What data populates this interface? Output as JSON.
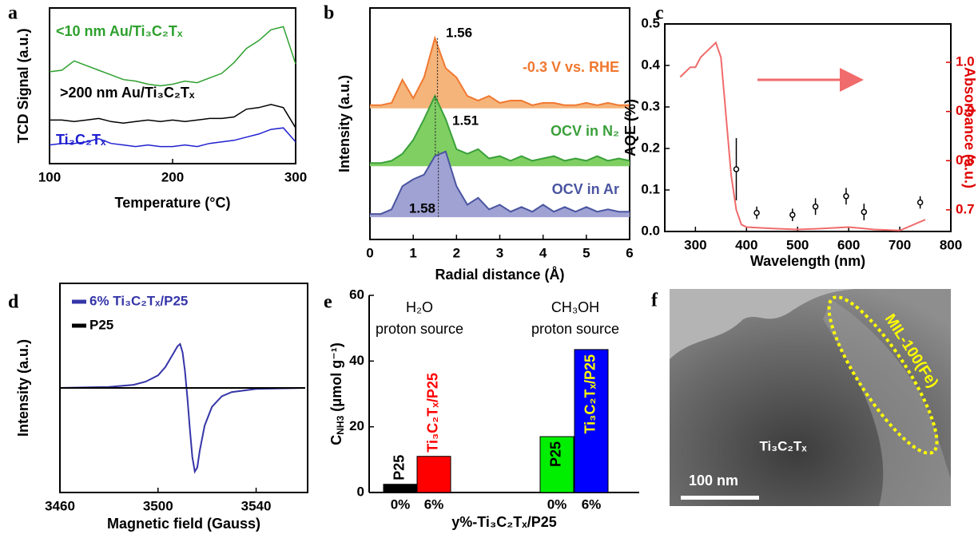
{
  "chart_data": [
    {
      "type": "line",
      "panel": "a",
      "x_label": "Temperature (°C)",
      "y_label": "TCD Signal (a.u.)",
      "x": [
        100,
        110,
        120,
        130,
        140,
        150,
        160,
        170,
        180,
        190,
        200,
        210,
        220,
        230,
        240,
        250,
        260,
        270,
        280,
        290,
        300
      ],
      "xlim": [
        100,
        300
      ],
      "xticks": [
        100,
        200,
        300
      ],
      "ylim": [
        0,
        10
      ],
      "series": [
        {
          "name": "<10 nm Au/Ti₃C₂Tₓ",
          "color": "#2ea02e",
          "values": [
            5.9,
            6.0,
            6.6,
            6.3,
            6.0,
            5.7,
            5.4,
            5.3,
            5.1,
            5.0,
            5.1,
            5.3,
            5.2,
            5.5,
            5.8,
            6.5,
            7.4,
            7.9,
            8.6,
            8.8,
            6.4
          ]
        },
        {
          "name": ">200 nm Au/Ti₃C₂Tₓ",
          "color": "#000000",
          "values": [
            2.8,
            2.8,
            2.7,
            2.8,
            2.9,
            2.7,
            2.6,
            2.7,
            2.8,
            2.7,
            2.8,
            2.7,
            2.8,
            2.9,
            2.9,
            3.0,
            3.5,
            3.6,
            3.8,
            3.6,
            2.3
          ]
        },
        {
          "name": "Ti₃C₂Tₓ",
          "color": "#2020d0",
          "values": [
            1.2,
            1.3,
            1.3,
            1.4,
            1.6,
            1.3,
            1.2,
            1.1,
            1.2,
            1.1,
            1.1,
            1.2,
            1.1,
            1.3,
            1.4,
            1.5,
            1.7,
            1.9,
            2.2,
            2.3,
            1.4
          ]
        }
      ]
    },
    {
      "type": "area",
      "panel": "b",
      "x_label": "Radial distance (Å)",
      "y_label": "Intensity (a.u.)",
      "x": [
        0,
        0.25,
        0.5,
        0.75,
        1,
        1.25,
        1.5,
        1.75,
        2,
        2.25,
        2.5,
        2.75,
        3,
        3.25,
        3.5,
        3.75,
        4,
        4.25,
        4.5,
        4.75,
        5,
        5.25,
        5.5,
        5.75,
        6
      ],
      "xlim": [
        0,
        6
      ],
      "xticks": [
        0,
        1,
        2,
        3,
        4,
        5,
        6
      ],
      "ylim": [
        0,
        10
      ],
      "series": [
        {
          "name": "-0.3 V vs. RHE",
          "color": "#f07830",
          "fill": "#f5b47a",
          "peak": 1.56,
          "values": [
            5.8,
            5.8,
            5.9,
            6.9,
            6.1,
            7.0,
            8.7,
            7.4,
            7.0,
            6.2,
            6.0,
            6.2,
            5.9,
            6.0,
            6.0,
            5.8,
            5.9,
            5.9,
            5.8,
            5.8,
            5.9,
            5.8,
            5.9,
            5.8,
            5.8
          ]
        },
        {
          "name": "OCV in N₂",
          "color": "#3aa03a",
          "fill": "#80cf62",
          "peak": 1.51,
          "values": [
            3.3,
            3.3,
            3.4,
            3.7,
            4.3,
            5.2,
            6.2,
            5.2,
            3.9,
            3.7,
            3.9,
            3.5,
            3.6,
            3.4,
            3.6,
            3.4,
            3.5,
            3.6,
            3.4,
            3.5,
            3.4,
            3.6,
            3.4,
            3.5,
            3.4
          ]
        },
        {
          "name": "OCV in Ar",
          "color": "#4a55a0",
          "fill": "#a0a2d4",
          "peak": 1.58,
          "values": [
            1.1,
            1.1,
            1.3,
            2.3,
            2.6,
            2.8,
            3.6,
            3.8,
            2.3,
            1.5,
            1.8,
            1.3,
            1.5,
            1.2,
            1.4,
            1.2,
            1.5,
            1.2,
            1.4,
            1.2,
            1.4,
            1.2,
            1.3,
            1.2,
            1.2
          ]
        }
      ]
    },
    {
      "type": "scatter",
      "panel": "c",
      "x_label": "Wavelength (nm)",
      "y_label": "AQE (%)",
      "y2_label": "Absorbance (a.u.)",
      "y2_color": "#e00000",
      "xlim": [
        240,
        800
      ],
      "xticks": [
        300,
        400,
        500,
        600,
        700,
        800
      ],
      "ylim": [
        0,
        0.5
      ],
      "yticks": [
        {
          "value": 0,
          "label": "0.0"
        },
        0.1,
        0.2,
        0.3,
        0.4,
        0.5
      ],
      "y2lim": [
        0.656,
        1.078
      ],
      "y2ticks": [
        0.7,
        0.8,
        0.9,
        {
          "value": 1,
          "label": "1.0"
        }
      ],
      "series": [
        {
          "type": "scatter",
          "color": "#000000",
          "x": [
            380,
            420,
            490,
            535,
            595,
            630,
            740
          ],
          "values": [
            0.15,
            0.045,
            0.04,
            0.06,
            0.085,
            0.047,
            0.07
          ],
          "errors": [
            0.075,
            0.015,
            0.015,
            0.02,
            0.02,
            0.02,
            0.015
          ]
        },
        {
          "type": "line",
          "axis": "y2",
          "color": "#f06b6b",
          "x": [
            270,
            280,
            290,
            300,
            310,
            320,
            330,
            340,
            350,
            360,
            370,
            380,
            390,
            400,
            450,
            500,
            550,
            600,
            650,
            700,
            750
          ],
          "values": [
            0.97,
            0.98,
            0.99,
            0.99,
            1.01,
            1.02,
            1.03,
            1.04,
            1.01,
            0.89,
            0.77,
            0.7,
            0.67,
            0.665,
            0.662,
            0.66,
            0.662,
            0.665,
            0.66,
            0.658,
            0.68
          ]
        }
      ]
    },
    {
      "type": "line",
      "panel": "d",
      "x_label": "Magnetic field (Gauss)",
      "y_label": "Intensity (a.u.)",
      "xlim": [
        3460,
        3561
      ],
      "xticks": [
        3460,
        3500,
        3540
      ],
      "ylim": [
        -0.5,
        0.5
      ],
      "series": [
        {
          "name": "6% Ti₃C₂Tₓ/P25",
          "color": "#3535a8",
          "x": [
            3460,
            3480,
            3490,
            3495,
            3500,
            3503,
            3506,
            3508,
            3509,
            3510,
            3511,
            3512,
            3513,
            3514,
            3515,
            3516,
            3517,
            3519,
            3522,
            3526,
            3530,
            3540,
            3560
          ],
          "values": [
            0,
            0.005,
            0.015,
            0.03,
            0.06,
            0.1,
            0.16,
            0.2,
            0.21,
            0.17,
            0.08,
            -0.05,
            -0.2,
            -0.33,
            -0.4,
            -0.38,
            -0.3,
            -0.18,
            -0.09,
            -0.04,
            -0.02,
            -0.005,
            0
          ]
        },
        {
          "name": "P25",
          "color": "#000000",
          "x": [
            3460,
            3560
          ],
          "values": [
            0,
            0
          ]
        }
      ]
    },
    {
      "type": "bar",
      "panel": "e",
      "x_label": "y%-Ti₃C₂Tₓ/P25",
      "y_label": {
        "symbol": "C",
        "subscript": "NH3",
        "unit": " (μmol g⁻¹)"
      },
      "categories": [
        "0%",
        "6%",
        "0%",
        "6%"
      ],
      "values": [
        2.5,
        11,
        17,
        43.5
      ],
      "colors": [
        "#000000",
        "#ff0000",
        "#00ee00",
        "#0000ff"
      ],
      "bar_labels": [
        "P25",
        "Ti₃C₂Tₓ/P25",
        "P25",
        "Ti₃C₂Tₓ/P25"
      ],
      "bar_label_colors": [
        "#000000",
        "#ff0000",
        "#000000",
        "#ffff00"
      ],
      "group_labels": [
        [
          "H₂O",
          "proton source"
        ],
        [
          "CH₃OH",
          "proton source"
        ]
      ],
      "ylim": [
        0,
        60
      ],
      "yticks": [
        0,
        20,
        40,
        60
      ]
    }
  ],
  "image_panel": {
    "panel": "f",
    "labels": [
      "Ti₃C₂Tₓ",
      "MIL-100(Fe)"
    ],
    "scale_bar": "100 nm"
  }
}
